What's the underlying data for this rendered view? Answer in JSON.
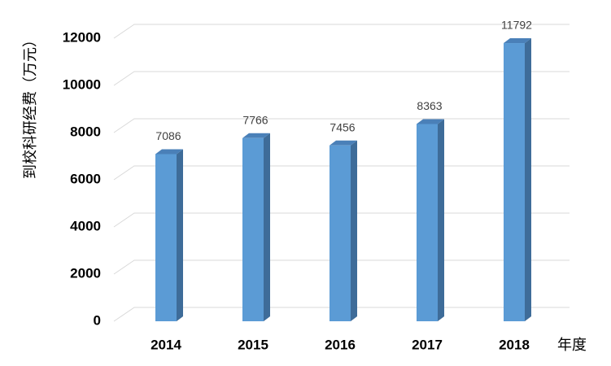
{
  "chart_data": {
    "type": "bar3d",
    "y_label": "到校科研经费（万元）",
    "x_label": "年度",
    "categories": [
      "2014",
      "2015",
      "2016",
      "2017",
      "2018"
    ],
    "values": [
      7086,
      7766,
      7456,
      8363,
      11792
    ],
    "color": "#5b9bd5",
    "ylim": [
      0,
      12000
    ],
    "yticks": [
      0,
      2000,
      4000,
      6000,
      8000,
      10000,
      12000
    ],
    "grid": true
  }
}
